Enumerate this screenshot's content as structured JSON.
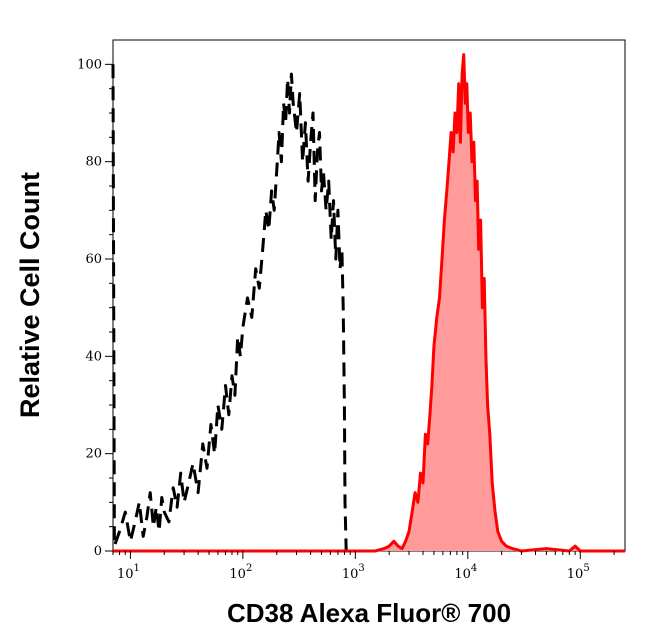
{
  "chart_data": {
    "type": "line",
    "title": "",
    "xlabel": "CD38 Alexa Fluor® 700",
    "ylabel": "Relative Cell Count",
    "x_scale": "log",
    "xlim": [
      7,
      250000
    ],
    "ylim": [
      0,
      105
    ],
    "x_ticks": [
      {
        "value": 10,
        "base": "10",
        "exp": "1"
      },
      {
        "value": 100,
        "base": "10",
        "exp": "2"
      },
      {
        "value": 1000,
        "base": "10",
        "exp": "3"
      },
      {
        "value": 10000,
        "base": "10",
        "exp": "4"
      },
      {
        "value": 100000,
        "base": "10",
        "exp": "5"
      }
    ],
    "y_ticks": [
      {
        "value": 0,
        "label": "0"
      },
      {
        "value": 20,
        "label": "20"
      },
      {
        "value": 40,
        "label": "40"
      },
      {
        "value": 60,
        "label": "60"
      },
      {
        "value": 80,
        "label": "80"
      },
      {
        "value": 100,
        "label": "100"
      }
    ],
    "grid": false,
    "legend": "none",
    "series": [
      {
        "color": "#000000",
        "style": "dashed",
        "fill": "none",
        "x": [
          7,
          7.2,
          8,
          9,
          10,
          11,
          12,
          13,
          14,
          15,
          16,
          17,
          18,
          19,
          20,
          22,
          24,
          26,
          28,
          30,
          33,
          36,
          40,
          44,
          48,
          52,
          56,
          60,
          65,
          70,
          75,
          80,
          85,
          90,
          95,
          100,
          110,
          120,
          130,
          140,
          150,
          160,
          170,
          180,
          190,
          200,
          210,
          220,
          230,
          240,
          250,
          260,
          270,
          280,
          300,
          320,
          340,
          360,
          380,
          400,
          420,
          440,
          460,
          480,
          500,
          520,
          550,
          580,
          610,
          640,
          670,
          700,
          730,
          760,
          780,
          800,
          810,
          830
        ],
        "y": [
          100,
          1,
          4,
          8,
          2,
          6,
          10,
          3,
          7,
          12,
          5,
          9,
          4,
          11,
          8,
          6,
          13,
          9,
          16,
          10,
          14,
          18,
          12,
          22,
          17,
          26,
          20,
          30,
          25,
          34,
          28,
          36,
          32,
          44,
          40,
          46,
          52,
          48,
          58,
          54,
          62,
          70,
          66,
          74,
          70,
          78,
          86,
          80,
          92,
          88,
          97,
          90,
          98,
          92,
          86,
          94,
          80,
          88,
          76,
          84,
          90,
          72,
          82,
          86,
          74,
          78,
          70,
          76,
          64,
          72,
          60,
          70,
          58,
          62,
          50,
          30,
          10,
          0
        ]
      },
      {
        "color": "#ff0000",
        "fill": "#ff9b9b",
        "style": "solid",
        "x": [
          7,
          1500,
          1800,
          2000,
          2200,
          2400,
          2600,
          2800,
          3000,
          3200,
          3400,
          3600,
          3800,
          4000,
          4200,
          4400,
          4600,
          4800,
          5000,
          5300,
          5600,
          5900,
          6200,
          6500,
          6800,
          7100,
          7400,
          7700,
          8000,
          8300,
          8600,
          8900,
          9200,
          9500,
          9800,
          10100,
          10500,
          10900,
          11300,
          11700,
          12100,
          12500,
          13000,
          13500,
          14000,
          14500,
          15000,
          15700,
          16500,
          17500,
          18500,
          20000,
          22000,
          25000,
          30000,
          50000,
          80000,
          90000,
          100000,
          250000
        ],
        "y": [
          0,
          0,
          0.5,
          1,
          2,
          1,
          0.5,
          2,
          4,
          8,
          12,
          10,
          16,
          14,
          24,
          22,
          28,
          34,
          42,
          48,
          52,
          60,
          68,
          74,
          80,
          86,
          82,
          90,
          86,
          96,
          84,
          98,
          102,
          92,
          96,
          86,
          90,
          80,
          84,
          72,
          76,
          62,
          68,
          50,
          56,
          40,
          30,
          24,
          14,
          8,
          4,
          2,
          1,
          0.5,
          0,
          0.5,
          0,
          1,
          0,
          0
        ]
      }
    ]
  }
}
